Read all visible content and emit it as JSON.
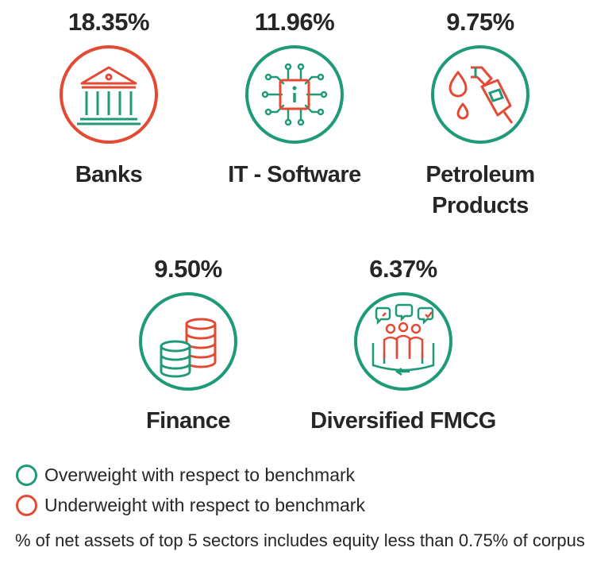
{
  "colors": {
    "overweight": "#1e9a79",
    "underweight": "#e44a33"
  },
  "sectors": [
    {
      "percent": "18.35%",
      "label": "Banks",
      "weight": "underweight",
      "icon": "bank-icon"
    },
    {
      "percent": "11.96%",
      "label": "IT - Software",
      "weight": "overweight",
      "icon": "chip-icon"
    },
    {
      "percent": "9.75%",
      "label_lines": [
        "Petroleum",
        "Products"
      ],
      "weight": "overweight",
      "icon": "fuel-nozzle-icon"
    },
    {
      "percent": "9.50%",
      "label": "Finance",
      "weight": "overweight",
      "icon": "coins-icon"
    },
    {
      "percent": "6.37%",
      "label": "Diversified FMCG",
      "weight": "overweight",
      "icon": "consumers-icon"
    }
  ],
  "legend": {
    "overweight": "Overweight with respect to benchmark",
    "underweight": "Underweight with respect to benchmark"
  },
  "footnote": "% of net assets of top 5 sectors includes equity less than 0.75% of corpus"
}
